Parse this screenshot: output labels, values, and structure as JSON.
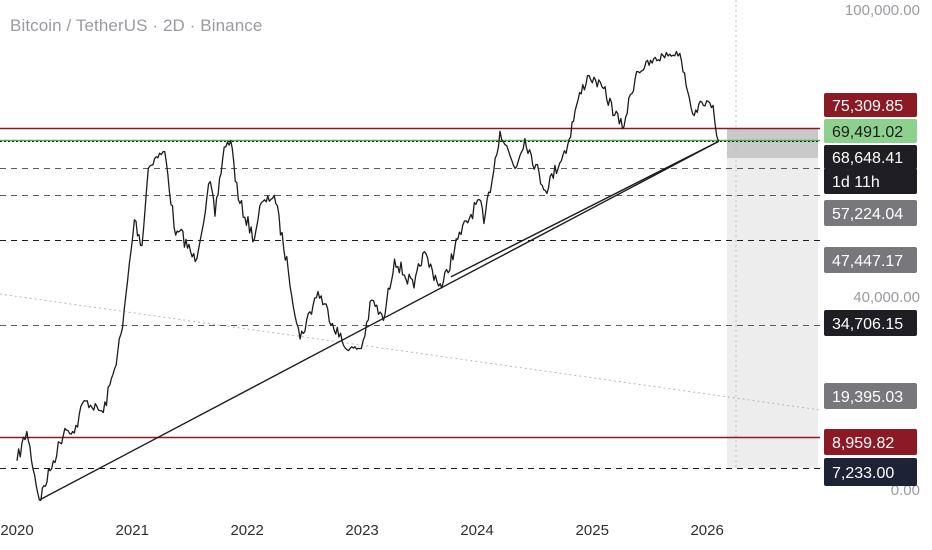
{
  "header": {
    "title": "Bitcoin / TetherUS · 2D · Binance"
  },
  "colors": {
    "price_line": "#1c1c20",
    "resistance_red": "#8b1a24",
    "support_green": "#4caf50",
    "dashed_level": "#5a5a60",
    "tag_gray": "#78787c",
    "tag_dark": "#1e1e24",
    "tag_navy": "#1e2235",
    "tag_green": "#8dd18f",
    "tag_red": "#8b1a24"
  },
  "chart_data": {
    "type": "line",
    "title": "Bitcoin / TetherUS · 2D · Binance",
    "symbol": "BTCUSDT",
    "interval": "2D",
    "exchange": "Binance",
    "scale": "log",
    "x_ticks": [
      "2020",
      "2021",
      "2022",
      "2023",
      "2024",
      "2025",
      "2026"
    ],
    "y_ticks": [
      "100,000.00",
      "40,000.00",
      "0.00"
    ],
    "series": [
      {
        "values": [
          [
            "2020-01-01",
            7600
          ],
          [
            "2020-02-01",
            9300
          ],
          [
            "2020-03-12",
            5800
          ],
          [
            "2020-04-15",
            7100
          ],
          [
            "2020-06-01",
            9500
          ],
          [
            "2020-07-01",
            9200
          ],
          [
            "2020-08-01",
            11500
          ],
          [
            "2020-10-01",
            10600
          ],
          [
            "2020-11-01",
            13800
          ],
          [
            "2020-12-01",
            19000
          ],
          [
            "2021-01-08",
            40000
          ],
          [
            "2021-02-01",
            33500
          ],
          [
            "2021-02-21",
            57000
          ],
          [
            "2021-03-13",
            61000
          ],
          [
            "2021-04-14",
            64000
          ],
          [
            "2021-05-19",
            36000
          ],
          [
            "2021-06-01",
            37000
          ],
          [
            "2021-07-20",
            30000
          ],
          [
            "2021-09-06",
            52000
          ],
          [
            "2021-09-21",
            41000
          ],
          [
            "2021-10-20",
            66000
          ],
          [
            "2021-11-10",
            69000
          ],
          [
            "2021-12-04",
            46000
          ],
          [
            "2022-01-24",
            35000
          ],
          [
            "2022-02-10",
            44000
          ],
          [
            "2022-03-28",
            47400
          ],
          [
            "2022-05-12",
            28000
          ],
          [
            "2022-06-18",
            17600
          ],
          [
            "2022-08-14",
            24400
          ],
          [
            "2022-11-09",
            16500
          ],
          [
            "2022-12-30",
            16500
          ],
          [
            "2023-02-01",
            23000
          ],
          [
            "2023-03-10",
            20000
          ],
          [
            "2023-04-14",
            30500
          ],
          [
            "2023-06-15",
            25000
          ],
          [
            "2023-07-13",
            31800
          ],
          [
            "2023-09-11",
            25000
          ],
          [
            "2023-11-01",
            35000
          ],
          [
            "2024-01-08",
            46000
          ],
          [
            "2024-01-23",
            39000
          ],
          [
            "2024-03-14",
            73600
          ],
          [
            "2024-05-01",
            57000
          ],
          [
            "2024-06-01",
            70000
          ],
          [
            "2024-08-05",
            49000
          ],
          [
            "2024-10-15",
            67000
          ],
          [
            "2024-11-12",
            88000
          ],
          [
            "2024-12-17",
            108000
          ],
          [
            "2025-02-01",
            100000
          ],
          [
            "2025-04-07",
            75000
          ],
          [
            "2025-05-22",
            111000
          ],
          [
            "2025-08-14",
            124000
          ],
          [
            "2025-10-06",
            126000
          ],
          [
            "2025-11-21",
            82000
          ],
          [
            "2025-12-15",
            90000
          ],
          [
            "2026-01-20",
            88000
          ],
          [
            "2026-02-06",
            68648.41
          ]
        ]
      }
    ],
    "horizontal_levels": [
      {
        "label": "75,309.85",
        "value": 75309.85,
        "style": "solid",
        "color": "#8b1a24"
      },
      {
        "label": "69,491.02",
        "value": 69491.02,
        "style": "solid",
        "color": "#4caf50"
      },
      {
        "label": "68,648.41",
        "value": 68648.41,
        "style": "dotted",
        "color": "#1c1c20"
      },
      {
        "label": "57,224.04",
        "value": 57224.04,
        "style": "dashed",
        "color": "#5a5a60"
      },
      {
        "label": "47,447.17",
        "value": 47447.17,
        "style": "dashed",
        "color": "#5a5a60"
      },
      {
        "label": "34,706.15",
        "value": 34706.15,
        "style": "dashed",
        "color": "#1c1c20"
      },
      {
        "label": "19,395.03",
        "value": 19395.03,
        "style": "dashed",
        "color": "#5a5a60"
      },
      {
        "label": "8,959.82",
        "value": 8959.82,
        "style": "solid",
        "color": "#8b1a24"
      },
      {
        "label": "7,233.00",
        "value": 7233.0,
        "style": "dashed",
        "color": "#1c1c20"
      }
    ],
    "trendlines": [
      {
        "from": [
          "2020-03-12",
          5800
        ],
        "to": [
          "2026-02-06",
          68648.41
        ]
      },
      {
        "from": [
          "2023-10-10",
          27000
        ],
        "to": [
          "2026-02-06",
          68648.41
        ]
      }
    ],
    "last_price": 68648.41,
    "countdown": "1d 11h",
    "price_tags": [
      {
        "text": "75,309.85",
        "kind": "red"
      },
      {
        "text": "69,491.02",
        "kind": "green"
      },
      {
        "text": "68,648.41",
        "kind": "dark"
      },
      {
        "text": "1d 11h",
        "kind": "dark"
      },
      {
        "text": "57,224.04",
        "kind": "gray"
      },
      {
        "text": "47,447.17",
        "kind": "gray"
      },
      {
        "text": "34,706.15",
        "kind": "dark"
      },
      {
        "text": "19,395.03",
        "kind": "gray"
      },
      {
        "text": "8,959.82",
        "kind": "red"
      },
      {
        "text": "7,233.00",
        "kind": "navy"
      }
    ]
  }
}
